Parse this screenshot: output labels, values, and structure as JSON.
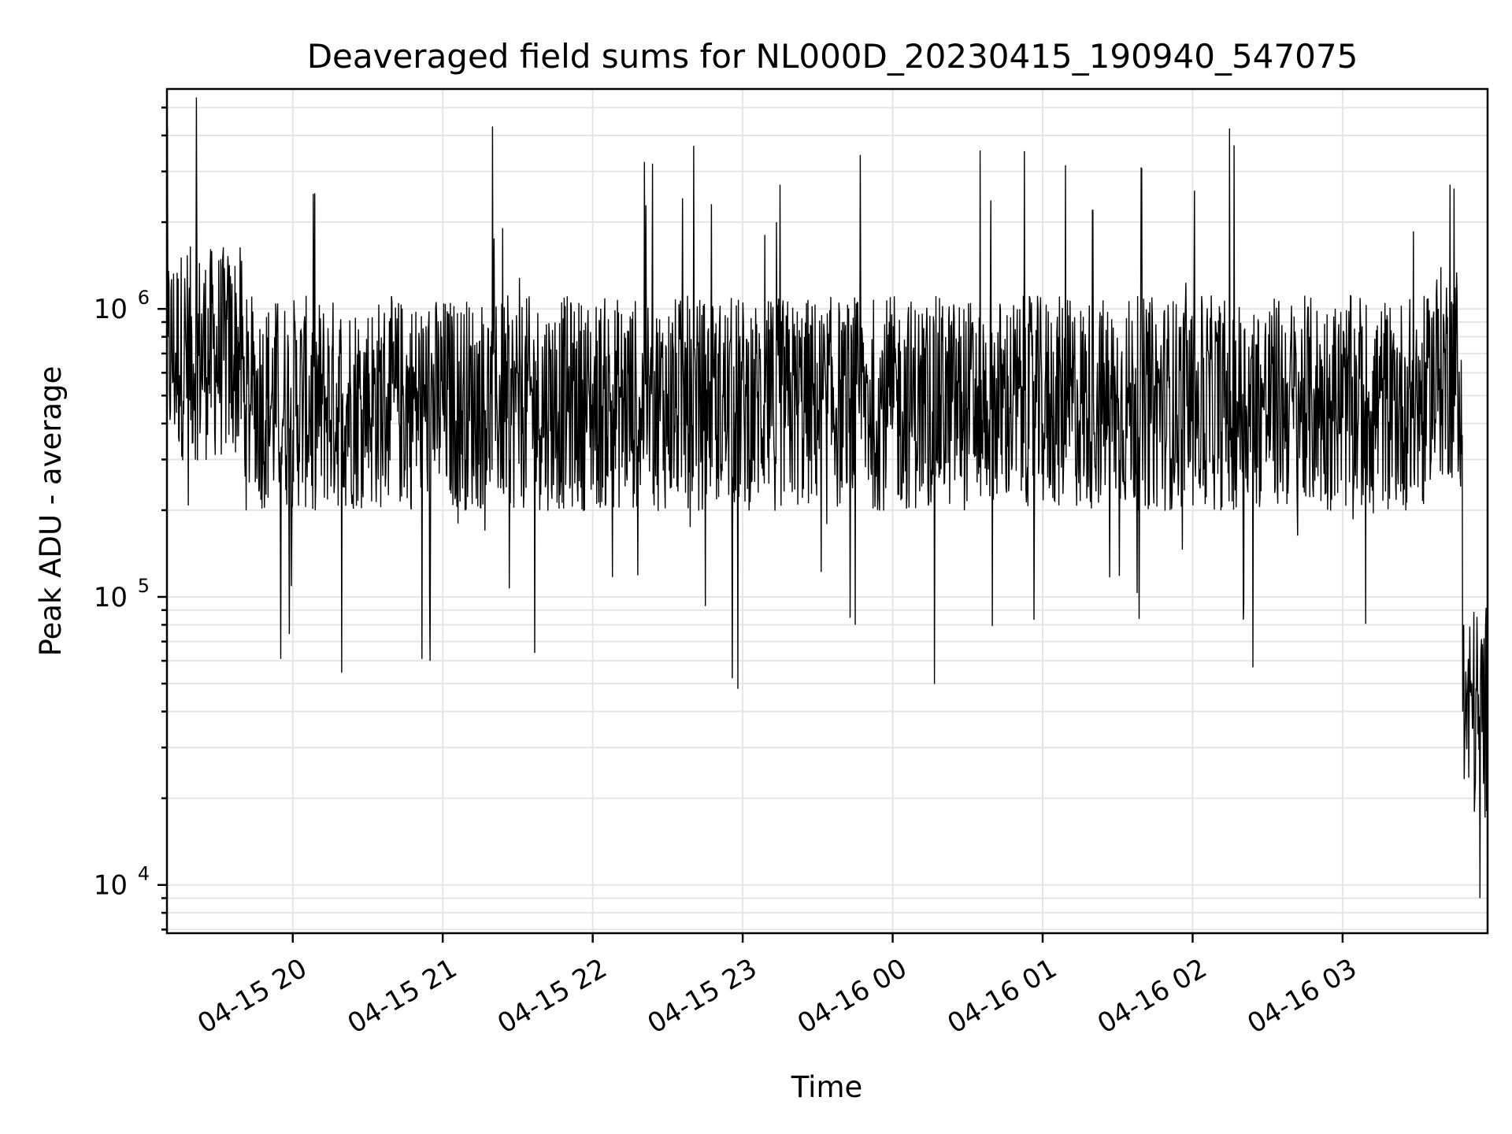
{
  "chart_data": {
    "type": "line",
    "title": "Deaveraged field sums for NL000D_20230415_190940_547075",
    "xlabel": "Time",
    "ylabel": "Peak ADU - average",
    "x_tick_labels": [
      "04-15 20",
      "04-15 21",
      "04-15 22",
      "04-15 23",
      "04-16 00",
      "04-16 01",
      "04-16 02",
      "04-16 03"
    ],
    "xlim": [
      "2023-04-15 19:09:40",
      "2023-04-16 03:58:00"
    ],
    "yscale": "log",
    "ylim": [
      6800,
      5800000
    ],
    "y_ticks": [
      10000,
      100000,
      1000000
    ],
    "y_tick_labels": [
      {
        "base": "10",
        "exp": "4"
      },
      {
        "base": "10",
        "exp": "5"
      },
      {
        "base": "10",
        "exp": "6"
      }
    ],
    "grid": true,
    "line_color": "#000000",
    "series": [
      {
        "x": [
          "2023-04-15 19:10",
          "2023-04-15 19:30",
          "2023-04-15 19:45",
          "2023-04-15 20:00",
          "2023-04-15 20:30",
          "2023-04-15 20:55",
          "2023-04-15 21:00",
          "2023-04-15 21:20",
          "2023-04-15 21:30",
          "2023-04-15 22:00",
          "2023-04-15 22:30",
          "2023-04-15 22:58",
          "2023-04-15 23:15",
          "2023-04-15 23:30",
          "2023-04-15 23:45",
          "2023-04-16 00:00",
          "2023-04-16 00:30",
          "2023-04-16 01:00",
          "2023-04-16 01:20",
          "2023-04-16 01:30",
          "2023-04-16 02:00",
          "2023-04-16 02:30",
          "2023-04-16 03:00",
          "2023-04-16 03:30",
          "2023-04-16 03:43",
          "2023-04-16 03:48",
          "2023-04-16 03:52",
          "2023-04-16 03:55",
          "2023-04-16 03:58"
        ],
        "y": [
          800000,
          600000,
          250000,
          380000,
          500000,
          60000,
          450000,
          4300000,
          600000,
          550000,
          400000,
          48000,
          2700000,
          350000,
          80000,
          420000,
          450000,
          400000,
          2200000,
          380000,
          500000,
          380000,
          420000,
          400000,
          2700000,
          40000,
          35000,
          9000,
          30000
        ]
      }
    ]
  }
}
